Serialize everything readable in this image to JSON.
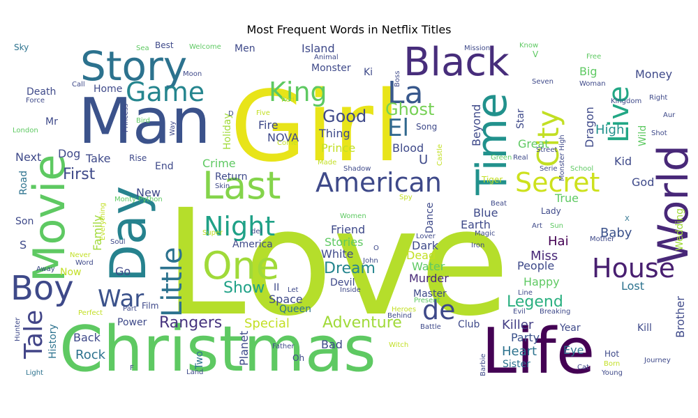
{
  "chart_data": {
    "type": "wordcloud",
    "title": "Most Frequent Words in Netflix Titles",
    "background": "#ffffff",
    "words": [
      {
        "text": "Love",
        "color": "#b5de2b",
        "rank": 1
      },
      {
        "text": "Girl",
        "color": "#e8e419",
        "rank": 2
      },
      {
        "text": "Christmas",
        "color": "#5ec962",
        "rank": 3
      },
      {
        "text": "Man",
        "color": "#3b528b",
        "rank": 4
      },
      {
        "text": "Life",
        "color": "#440154",
        "rank": 5
      },
      {
        "text": "Movie",
        "color": "#5ec962",
        "rank": 6
      },
      {
        "text": "Day",
        "color": "#26828e",
        "rank": 7
      },
      {
        "text": "Story",
        "color": "#2c728e",
        "rank": 8
      },
      {
        "text": "World",
        "color": "#482878",
        "rank": 9
      },
      {
        "text": "Black",
        "color": "#472d7b",
        "rank": 10
      },
      {
        "text": "Time",
        "color": "#21918c",
        "rank": 11
      },
      {
        "text": "Last",
        "color": "#84d44b",
        "rank": 12
      },
      {
        "text": "One",
        "color": "#a0da39",
        "rank": 13
      },
      {
        "text": "Boy",
        "color": "#3e4989",
        "rank": 14
      },
      {
        "text": "Little",
        "color": "#2c728e",
        "rank": 15
      },
      {
        "text": "American",
        "color": "#3e4989",
        "rank": 16
      },
      {
        "text": "House",
        "color": "#481f70",
        "rank": 17
      },
      {
        "text": "Night",
        "color": "#1fa187",
        "rank": 18
      },
      {
        "text": "La",
        "color": "#38588c",
        "rank": 19
      },
      {
        "text": "Game",
        "color": "#25858e",
        "rank": 20
      },
      {
        "text": "King",
        "color": "#5ec962",
        "rank": 21
      },
      {
        "text": "City",
        "color": "#c2df23",
        "rank": 22
      },
      {
        "text": "Live",
        "color": "#22a785",
        "rank": 23
      },
      {
        "text": "Secret",
        "color": "#cde11d",
        "rank": 24
      },
      {
        "text": "Tale",
        "color": "#414487",
        "rank": 25
      },
      {
        "text": "War",
        "color": "#3b528b",
        "rank": 26
      },
      {
        "text": "de",
        "color": "#3e4989",
        "rank": 27
      },
      {
        "text": "El",
        "color": "#31688e",
        "rank": 28
      },
      {
        "text": "Good",
        "color": "#3e4989",
        "rank": 29
      },
      {
        "text": "Ghost",
        "color": "#75d054",
        "rank": 30
      },
      {
        "text": "Legend",
        "color": "#29af7f",
        "rank": 31
      },
      {
        "text": "Adventure",
        "color": "#a0da39",
        "rank": 32
      },
      {
        "text": "Dream",
        "color": "#25858e",
        "rank": 33
      },
      {
        "text": "Show",
        "color": "#1fa187",
        "rank": 34
      },
      {
        "text": "Killer",
        "color": "#433e85",
        "rank": 35
      },
      {
        "text": "Heart",
        "color": "#2c728e",
        "rank": 36
      },
      {
        "text": "First",
        "color": "#3e4989",
        "rank": 37
      },
      {
        "text": "Rangers",
        "color": "#46337e",
        "rank": 38
      },
      {
        "text": "Power",
        "color": "#3e4989",
        "rank": 39
      },
      {
        "text": "Special",
        "color": "#c2df23",
        "rank": 40
      },
      {
        "text": "Planet",
        "color": "#3e4989",
        "rank": 41
      },
      {
        "text": "Rock",
        "color": "#2c728e",
        "rank": 42
      },
      {
        "text": "Back",
        "color": "#3e4989",
        "rank": 43
      },
      {
        "text": "Space",
        "color": "#3e4989",
        "rank": 44
      },
      {
        "text": "Queen",
        "color": "#2c728e",
        "rank": 45
      },
      {
        "text": "Devil",
        "color": "#3e4989",
        "rank": 46
      },
      {
        "text": "Murder",
        "color": "#482878",
        "rank": 47
      },
      {
        "text": "Master",
        "color": "#3e4989",
        "rank": 48
      },
      {
        "text": "Happy",
        "color": "#5ec962",
        "rank": 49
      },
      {
        "text": "Party",
        "color": "#3b528b",
        "rank": 50
      },
      {
        "text": "Sister",
        "color": "#2c728e",
        "rank": 51
      },
      {
        "text": "Eye",
        "color": "#2c728e",
        "rank": 52
      },
      {
        "text": "Year",
        "color": "#3e4989",
        "rank": 53
      },
      {
        "text": "Kill",
        "color": "#3e4989",
        "rank": 54
      },
      {
        "text": "Brother",
        "color": "#3e4989",
        "rank": 55
      },
      {
        "text": "Wedding",
        "color": "#a0da39",
        "rank": 56
      },
      {
        "text": "Lost",
        "color": "#2c728e",
        "rank": 57
      },
      {
        "text": "Baby",
        "color": "#3b528b",
        "rank": 58
      },
      {
        "text": "Miss",
        "color": "#482878",
        "rank": 59
      },
      {
        "text": "People",
        "color": "#3e4989",
        "rank": 60
      },
      {
        "text": "Hai",
        "color": "#440154",
        "rank": 61
      },
      {
        "text": "Blue",
        "color": "#3e4989",
        "rank": 62
      },
      {
        "text": "Earth",
        "color": "#3e4989",
        "rank": 63
      },
      {
        "text": "True",
        "color": "#5ec962",
        "rank": 64
      },
      {
        "text": "God",
        "color": "#3e4989",
        "rank": 65
      },
      {
        "text": "Kid",
        "color": "#3e4989",
        "rank": 66
      },
      {
        "text": "High",
        "color": "#21918c",
        "rank": 67
      },
      {
        "text": "Dragon",
        "color": "#3e4989",
        "rank": 68
      },
      {
        "text": "Great",
        "color": "#5ec962",
        "rank": 69
      },
      {
        "text": "Star",
        "color": "#3e4989",
        "rank": 70
      },
      {
        "text": "Beyond",
        "color": "#3e4989",
        "rank": 71
      },
      {
        "text": "Thing",
        "color": "#3e4989",
        "rank": 72
      },
      {
        "text": "Prince",
        "color": "#c2df23",
        "rank": 73
      },
      {
        "text": "Blood",
        "color": "#3e4989",
        "rank": 74
      },
      {
        "text": "Fire",
        "color": "#3e4989",
        "rank": 75
      },
      {
        "text": "NOVA",
        "color": "#3e4989",
        "rank": 76
      },
      {
        "text": "Crime",
        "color": "#5ec962",
        "rank": 77
      },
      {
        "text": "Return",
        "color": "#3e4989",
        "rank": 78
      },
      {
        "text": "Holiday",
        "color": "#a0da39",
        "rank": 79
      },
      {
        "text": "Family",
        "color": "#a0da39",
        "rank": 80
      },
      {
        "text": "New",
        "color": "#3e4989",
        "rank": 81
      },
      {
        "text": "Take",
        "color": "#3e4989",
        "rank": 82
      },
      {
        "text": "End",
        "color": "#3e4989",
        "rank": 83
      },
      {
        "text": "Dog",
        "color": "#3e4989",
        "rank": 84
      },
      {
        "text": "Mr",
        "color": "#3e4989",
        "rank": 85
      },
      {
        "text": "Home",
        "color": "#3e4989",
        "rank": 86
      },
      {
        "text": "Death",
        "color": "#3e4989",
        "rank": 87
      },
      {
        "text": "Next",
        "color": "#3e4989",
        "rank": 88
      },
      {
        "text": "Son",
        "color": "#3e4989",
        "rank": 89
      },
      {
        "text": "America",
        "color": "#3e4989",
        "rank": 90
      },
      {
        "text": "Friend",
        "color": "#3e4989",
        "rank": 91
      },
      {
        "text": "Stories",
        "color": "#5ec962",
        "rank": 92
      },
      {
        "text": "White",
        "color": "#3e4989",
        "rank": 93
      },
      {
        "text": "Dark",
        "color": "#3e4989",
        "rank": 94
      },
      {
        "text": "Water",
        "color": "#5ec962",
        "rank": 95
      },
      {
        "text": "Dead",
        "color": "#c2df23",
        "rank": 96
      },
      {
        "text": "Dance",
        "color": "#3e4989",
        "rank": 97
      },
      {
        "text": "Money",
        "color": "#3e4989",
        "rank": 98
      },
      {
        "text": "Big",
        "color": "#5ec962",
        "rank": 99
      },
      {
        "text": "Island",
        "color": "#3e4989",
        "rank": 100
      },
      {
        "text": "Monster",
        "color": "#3e4989",
        "rank": 101
      },
      {
        "text": "Men",
        "color": "#3e4989",
        "rank": 102
      },
      {
        "text": "Go",
        "color": "#3e4989",
        "rank": 103
      },
      {
        "text": "Now",
        "color": "#c2df23",
        "rank": 104
      },
      {
        "text": "History",
        "color": "#2c728e",
        "rank": 105
      },
      {
        "text": "Two",
        "color": "#2c728e",
        "rank": 106
      },
      {
        "text": "Club",
        "color": "#3e4989",
        "rank": 107
      },
      {
        "text": "Bad",
        "color": "#3e4989",
        "rank": 108
      },
      {
        "text": "Road",
        "color": "#2c728e",
        "rank": 109
      },
      {
        "text": "Song",
        "color": "#3e4989",
        "rank": 110
      },
      {
        "text": "Wild",
        "color": "#5ec962",
        "rank": 111
      },
      {
        "text": "Ki",
        "color": "#3e4989",
        "rank": 112
      },
      {
        "text": "II",
        "color": "#3e4989",
        "rank": 113
      },
      {
        "text": "U",
        "color": "#3e4989",
        "rank": 114
      },
      {
        "text": "S",
        "color": "#3e4989",
        "rank": 115
      },
      {
        "text": "Sky",
        "color": "#2c728e",
        "rank": 116
      },
      {
        "text": "Sea",
        "color": "#5ec962",
        "rank": 117
      },
      {
        "text": "Best",
        "color": "#3e4989",
        "rank": 118
      },
      {
        "text": "Welcome",
        "color": "#5ec962",
        "rank": 119
      },
      {
        "text": "Mission",
        "color": "#3e4989",
        "rank": 120
      },
      {
        "text": "Know",
        "color": "#5ec962",
        "rank": 121
      },
      {
        "text": "Free",
        "color": "#5ec962",
        "rank": 122
      },
      {
        "text": "Moon",
        "color": "#3e4989",
        "rank": 123
      },
      {
        "text": "Animal",
        "color": "#3e4989",
        "rank": 124
      },
      {
        "text": "Call",
        "color": "#3e4989",
        "rank": 125
      },
      {
        "text": "Force",
        "color": "#3e4989",
        "rank": 126
      },
      {
        "text": "Princess",
        "color": "#3e4989",
        "rank": 127
      },
      {
        "text": "Bird",
        "color": "#5ec962",
        "rank": 128
      },
      {
        "text": "Way",
        "color": "#3e4989",
        "rank": 129
      },
      {
        "text": "Five",
        "color": "#c2df23",
        "rank": 130
      },
      {
        "text": "Red",
        "color": "#c2df23",
        "rank": 131
      },
      {
        "text": "London",
        "color": "#5ec962",
        "rank": 132
      },
      {
        "text": "Come",
        "color": "#c2df23",
        "rank": 133
      },
      {
        "text": "Rise",
        "color": "#3e4989",
        "rank": 134
      },
      {
        "text": "Made",
        "color": "#c2df23",
        "rank": 135
      },
      {
        "text": "Shadow",
        "color": "#3e4989",
        "rank": 136
      },
      {
        "text": "Skin",
        "color": "#3e4989",
        "rank": 137
      },
      {
        "text": "Monty Python",
        "color": "#5ec962",
        "rank": 138
      },
      {
        "text": "Super",
        "color": "#c2df23",
        "rank": 139
      },
      {
        "text": "del",
        "color": "#3e4989",
        "rank": 140
      },
      {
        "text": "Soul",
        "color": "#3e4989",
        "rank": 141
      },
      {
        "text": "Everything",
        "color": "#c2df23",
        "rank": 142
      },
      {
        "text": "Never",
        "color": "#c2df23",
        "rank": 143
      },
      {
        "text": "Word",
        "color": "#3e4989",
        "rank": 144
      },
      {
        "text": "Away",
        "color": "#3e4989",
        "rank": 145
      },
      {
        "text": "Perfect",
        "color": "#c2df23",
        "rank": 146
      },
      {
        "text": "Part",
        "color": "#3e4989",
        "rank": 147
      },
      {
        "text": "Film",
        "color": "#3e4989",
        "rank": 148
      },
      {
        "text": "Let",
        "color": "#3e4989",
        "rank": 149
      },
      {
        "text": "Hunter",
        "color": "#3e4989",
        "rank": 150
      },
      {
        "text": "Light",
        "color": "#2c728e",
        "rank": 151
      },
      {
        "text": "Land",
        "color": "#3e4989",
        "rank": 152
      },
      {
        "text": "Father",
        "color": "#3e4989",
        "rank": 153
      },
      {
        "text": "Oh",
        "color": "#3e4989",
        "rank": 154
      },
      {
        "text": "Witch",
        "color": "#c2df23",
        "rank": 155
      },
      {
        "text": "Heroes",
        "color": "#c2df23",
        "rank": 156
      },
      {
        "text": "Behind",
        "color": "#3e4989",
        "rank": 157
      },
      {
        "text": "Battle",
        "color": "#3e4989",
        "rank": 158
      },
      {
        "text": "Present",
        "color": "#5ec962",
        "rank": 159
      },
      {
        "text": "Inside",
        "color": "#3e4989",
        "rank": 160
      },
      {
        "text": "John",
        "color": "#3e4989",
        "rank": 161
      },
      {
        "text": "Women",
        "color": "#5ec962",
        "rank": 162
      },
      {
        "text": "O",
        "color": "#3e4989",
        "rank": 163
      },
      {
        "text": "Lover",
        "color": "#3e4989",
        "rank": 164
      },
      {
        "text": "Iron",
        "color": "#3e4989",
        "rank": 165
      },
      {
        "text": "Magic",
        "color": "#3e4989",
        "rank": 166
      },
      {
        "text": "Spy",
        "color": "#c2df23",
        "rank": 167
      },
      {
        "text": "Beat",
        "color": "#3e4989",
        "rank": 168
      },
      {
        "text": "Tiger",
        "color": "#c2df23",
        "rank": 169
      },
      {
        "text": "Lady",
        "color": "#3e4989",
        "rank": 170
      },
      {
        "text": "Art",
        "color": "#3e4989",
        "rank": 171
      },
      {
        "text": "Sun",
        "color": "#5ec962",
        "rank": 172
      },
      {
        "text": "Mother",
        "color": "#3e4989",
        "rank": 173
      },
      {
        "text": "X",
        "color": "#2c728e",
        "rank": 174
      },
      {
        "text": "Line",
        "color": "#3e4989",
        "rank": 175
      },
      {
        "text": "Evil",
        "color": "#3e4989",
        "rank": 176
      },
      {
        "text": "Breaking",
        "color": "#3e4989",
        "rank": 177
      },
      {
        "text": "Barbie",
        "color": "#3e4989",
        "rank": 178
      },
      {
        "text": "Cat",
        "color": "#3e4989",
        "rank": 179
      },
      {
        "text": "Hot",
        "color": "#3e4989",
        "rank": 180
      },
      {
        "text": "Born",
        "color": "#c2df23",
        "rank": 181
      },
      {
        "text": "Young",
        "color": "#3e4989",
        "rank": 182
      },
      {
        "text": "Journey",
        "color": "#3e4989",
        "rank": 183
      },
      {
        "text": "Serie",
        "color": "#3e4989",
        "rank": 184
      },
      {
        "text": "School",
        "color": "#5ec962",
        "rank": 185
      },
      {
        "text": "Green",
        "color": "#5ec962",
        "rank": 186
      },
      {
        "text": "Real",
        "color": "#3e4989",
        "rank": 187
      },
      {
        "text": "Castle",
        "color": "#c2df23",
        "rank": 188
      },
      {
        "text": "Street",
        "color": "#3e4989",
        "rank": 189
      },
      {
        "text": "Monster High",
        "color": "#3e4989",
        "rank": 190
      },
      {
        "text": "Shot",
        "color": "#3e4989",
        "rank": 191
      },
      {
        "text": "Aur",
        "color": "#3e4989",
        "rank": 192
      },
      {
        "text": "Right",
        "color": "#3e4989",
        "rank": 193
      },
      {
        "text": "Kingdom",
        "color": "#3e4989",
        "rank": 194
      },
      {
        "text": "Woman",
        "color": "#3e4989",
        "rank": 195
      },
      {
        "text": "Seven",
        "color": "#3e4989",
        "rank": 196
      },
      {
        "text": "Boss",
        "color": "#3e4989",
        "rank": 197
      },
      {
        "text": "V",
        "color": "#5ec962",
        "rank": 198
      },
      {
        "text": "F",
        "color": "#3e4989",
        "rank": 199
      },
      {
        "text": "D",
        "color": "#3e4989",
        "rank": 200
      }
    ]
  }
}
